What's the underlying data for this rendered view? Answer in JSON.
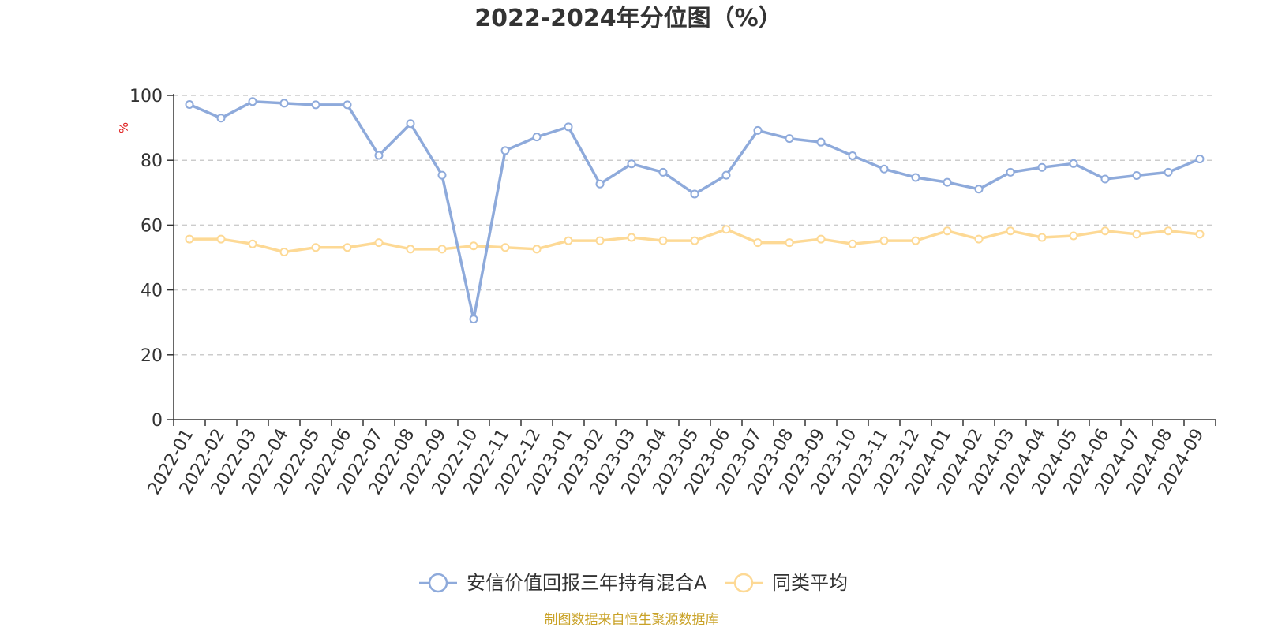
{
  "chart_data": {
    "type": "line",
    "title": "2022-2024年分位图（%）",
    "ylabel": "%",
    "ylim": [
      0,
      100
    ],
    "yticks": [
      0,
      20,
      40,
      60,
      80,
      100
    ],
    "grid": true,
    "legend_position": "bottom",
    "categories": [
      "2022-01",
      "2022-02",
      "2022-03",
      "2022-04",
      "2022-05",
      "2022-06",
      "2022-07",
      "2022-08",
      "2022-09",
      "2022-10",
      "2022-11",
      "2022-12",
      "2023-01",
      "2023-02",
      "2023-03",
      "2023-04",
      "2023-05",
      "2023-06",
      "2023-07",
      "2023-08",
      "2023-09",
      "2023-10",
      "2023-11",
      "2023-12",
      "2024-01",
      "2024-02",
      "2024-03",
      "2024-04",
      "2024-05",
      "2024-06",
      "2024-07",
      "2024-08",
      "2024-09"
    ],
    "series": [
      {
        "name": "安信价值回报三年持有混合A",
        "color": "#8eaadb",
        "values": [
          97.2,
          93.0,
          98.1,
          97.6,
          97.1,
          97.1,
          81.5,
          91.3,
          75.4,
          31.0,
          83.0,
          87.2,
          90.3,
          72.7,
          78.9,
          76.3,
          69.6,
          75.4,
          89.2,
          86.7,
          85.6,
          81.4,
          77.3,
          74.7,
          73.2,
          71.1,
          76.3,
          77.8,
          79.0,
          74.2,
          75.3,
          76.3,
          80.4
        ]
      },
      {
        "name": "同类平均",
        "color": "#fdd995",
        "values": [
          55.7,
          55.7,
          54.2,
          51.7,
          53.1,
          53.1,
          54.6,
          52.6,
          52.6,
          53.6,
          53.1,
          52.6,
          55.2,
          55.2,
          56.2,
          55.2,
          55.2,
          58.7,
          54.6,
          54.6,
          55.7,
          54.2,
          55.2,
          55.2,
          58.2,
          55.7,
          58.2,
          56.2,
          56.7,
          58.2,
          57.2,
          58.2,
          57.2
        ]
      }
    ]
  },
  "source": {
    "text": "制图数据来自恒生聚源数据库",
    "color": "#c9a227"
  },
  "ylabel_color": "#e02020"
}
